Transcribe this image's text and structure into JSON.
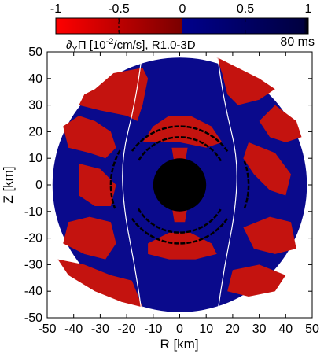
{
  "chart_data": {
    "type": "heatmap",
    "caption": "∂",
    "caption_sub": "Y",
    "caption_rest": "Π [10",
    "caption_sup": "-2",
    "caption_tail": "/cm/s], R1.0-3D",
    "time_label": "80 ms",
    "xlabel": "R [km]",
    "ylabel": "Z [km]",
    "xlim": [
      -50,
      50
    ],
    "ylim": [
      -50,
      50
    ],
    "xticks": [
      "-50",
      "-40",
      "-30",
      "-20",
      "-10",
      "0",
      "10",
      "20",
      "30",
      "40",
      "50"
    ],
    "yticks": [
      "50",
      "40",
      "30",
      "20",
      "10",
      "0",
      "-10",
      "-20",
      "-30",
      "-40",
      "-50"
    ],
    "colorbar": {
      "min": -1,
      "max": 1,
      "ticks": [
        "-1",
        "-0.5",
        "0",
        "0.5",
        "1"
      ],
      "colors": {
        "neg_min": "#ff0000",
        "neg_max": "#800000",
        "zero": "#000000",
        "pos_min": "#000080",
        "pos_max": "#00008b"
      }
    },
    "colors": {
      "positive": "#0a0a8c",
      "negative": "#c4130f",
      "core": "#000000",
      "contour": "#ffffff"
    },
    "outer_radius_km": 48,
    "core_radius_km": 10,
    "contours": [
      {
        "name": "",
        "points": [
          [
            -14,
            50
          ],
          [
            -17,
            30
          ],
          [
            -22,
            10
          ],
          [
            -21,
            -10
          ],
          [
            -17,
            -30
          ],
          [
            -14,
            -50
          ]
        ]
      },
      {
        "name": "",
        "points": [
          [
            14,
            50
          ],
          [
            17,
            30
          ],
          [
            22,
            10
          ],
          [
            21,
            -10
          ],
          [
            17,
            -30
          ],
          [
            14,
            -50
          ]
        ]
      }
    ],
    "grid": false,
    "legend": "none"
  }
}
